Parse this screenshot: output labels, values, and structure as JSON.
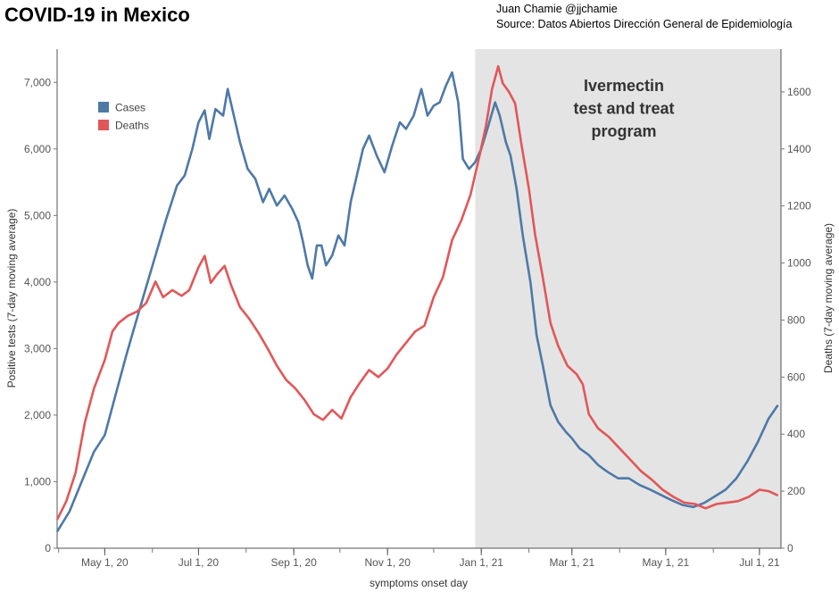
{
  "header": {
    "title": "COVID-19 in Mexico",
    "credit_line1": "Juan Chamie  @jjchamie",
    "credit_line2": "Source: Datos Abiertos Dirección General de Epidemiología"
  },
  "chart_data": {
    "type": "line",
    "title": "COVID-19 in Mexico",
    "xlabel": "symptoms onset day",
    "ylabel_left": "Positive tests (7-day moving average)",
    "ylabel_right": "Deaths (7-day moving average)",
    "x_tick_labels": [
      "May 1, 20",
      "Jul 1, 20",
      "Sep 1, 20",
      "Nov 1, 20",
      "Jan 1, 21",
      "Mar 1, 21",
      "May 1, 21",
      "Jul 1, 21"
    ],
    "x_tick_dates": [
      "2020-05-01",
      "2020-07-01",
      "2020-09-01",
      "2020-11-01",
      "2021-01-01",
      "2021-03-01",
      "2021-05-01",
      "2021-07-01"
    ],
    "xlim": [
      "2020-03-31",
      "2021-07-15"
    ],
    "ylim_left": [
      0,
      7500
    ],
    "ylim_right": [
      0,
      1750
    ],
    "y_left_ticks": [
      {
        "value": 0,
        "label": "0"
      },
      {
        "value": 1000,
        "label": "1,000"
      },
      {
        "value": 2000,
        "label": "2,000"
      },
      {
        "value": 3000,
        "label": "3,000"
      },
      {
        "value": 4000,
        "label": "4,000"
      },
      {
        "value": 5000,
        "label": "5,000"
      },
      {
        "value": 6000,
        "label": "6,000"
      },
      {
        "value": 7000,
        "label": "7,000"
      }
    ],
    "y_right_ticks": [
      {
        "value": 0,
        "label": "0"
      },
      {
        "value": 200,
        "label": "200"
      },
      {
        "value": 400,
        "label": "400"
      },
      {
        "value": 600,
        "label": "600"
      },
      {
        "value": 800,
        "label": "800"
      },
      {
        "value": 1000,
        "label": "1000"
      },
      {
        "value": 1200,
        "label": "1200"
      },
      {
        "value": 1400,
        "label": "1400"
      },
      {
        "value": 1600,
        "label": "1600"
      }
    ],
    "legend_position": "top-left",
    "grid": false,
    "shaded_region": {
      "start": "2020-12-28",
      "end": "2021-07-15",
      "label_lines": [
        "Ivermectin",
        "test and treat",
        "program"
      ],
      "color": "#e4e4e4"
    },
    "series": [
      {
        "name": "Cases",
        "axis": "left",
        "color": "#4e79a7",
        "points": [
          [
            "2020-03-31",
            250
          ],
          [
            "2020-04-08",
            550
          ],
          [
            "2020-04-16",
            1000
          ],
          [
            "2020-04-24",
            1450
          ],
          [
            "2020-05-01",
            1700
          ],
          [
            "2020-05-08",
            2300
          ],
          [
            "2020-05-15",
            2900
          ],
          [
            "2020-05-20",
            3300
          ],
          [
            "2020-05-27",
            3850
          ],
          [
            "2020-06-03",
            4400
          ],
          [
            "2020-06-10",
            4950
          ],
          [
            "2020-06-17",
            5450
          ],
          [
            "2020-06-22",
            5600
          ],
          [
            "2020-06-27",
            6000
          ],
          [
            "2020-07-01",
            6400
          ],
          [
            "2020-07-05",
            6580
          ],
          [
            "2020-07-08",
            6150
          ],
          [
            "2020-07-12",
            6600
          ],
          [
            "2020-07-17",
            6500
          ],
          [
            "2020-07-20",
            6900
          ],
          [
            "2020-07-24",
            6500
          ],
          [
            "2020-07-28",
            6100
          ],
          [
            "2020-08-02",
            5700
          ],
          [
            "2020-08-07",
            5550
          ],
          [
            "2020-08-12",
            5200
          ],
          [
            "2020-08-16",
            5400
          ],
          [
            "2020-08-21",
            5150
          ],
          [
            "2020-08-26",
            5300
          ],
          [
            "2020-08-31",
            5100
          ],
          [
            "2020-09-04",
            4900
          ],
          [
            "2020-09-07",
            4600
          ],
          [
            "2020-09-10",
            4250
          ],
          [
            "2020-09-13",
            4050
          ],
          [
            "2020-09-16",
            4550
          ],
          [
            "2020-09-19",
            4550
          ],
          [
            "2020-09-22",
            4250
          ],
          [
            "2020-09-26",
            4400
          ],
          [
            "2020-09-30",
            4700
          ],
          [
            "2020-10-04",
            4550
          ],
          [
            "2020-10-08",
            5200
          ],
          [
            "2020-10-12",
            5600
          ],
          [
            "2020-10-16",
            6000
          ],
          [
            "2020-10-20",
            6200
          ],
          [
            "2020-10-25",
            5900
          ],
          [
            "2020-10-30",
            5650
          ],
          [
            "2020-11-04",
            6050
          ],
          [
            "2020-11-09",
            6400
          ],
          [
            "2020-11-13",
            6300
          ],
          [
            "2020-11-18",
            6500
          ],
          [
            "2020-11-23",
            6900
          ],
          [
            "2020-11-27",
            6500
          ],
          [
            "2020-12-01",
            6650
          ],
          [
            "2020-12-05",
            6700
          ],
          [
            "2020-12-09",
            6950
          ],
          [
            "2020-12-13",
            7150
          ],
          [
            "2020-12-17",
            6700
          ],
          [
            "2020-12-20",
            5850
          ],
          [
            "2020-12-24",
            5700
          ],
          [
            "2020-12-28",
            5800
          ],
          [
            "2021-01-01",
            6000
          ],
          [
            "2021-01-05",
            6300
          ],
          [
            "2021-01-10",
            6700
          ],
          [
            "2021-01-13",
            6500
          ],
          [
            "2021-01-17",
            6100
          ],
          [
            "2021-01-20",
            5900
          ],
          [
            "2021-01-24",
            5400
          ],
          [
            "2021-01-28",
            4700
          ],
          [
            "2021-02-02",
            4000
          ],
          [
            "2021-02-06",
            3200
          ],
          [
            "2021-02-10",
            2750
          ],
          [
            "2021-02-15",
            2150
          ],
          [
            "2021-02-20",
            1900
          ],
          [
            "2021-02-25",
            1750
          ],
          [
            "2021-03-01",
            1650
          ],
          [
            "2021-03-06",
            1500
          ],
          [
            "2021-03-12",
            1400
          ],
          [
            "2021-03-18",
            1250
          ],
          [
            "2021-03-24",
            1150
          ],
          [
            "2021-03-31",
            1050
          ],
          [
            "2021-04-07",
            1050
          ],
          [
            "2021-04-14",
            950
          ],
          [
            "2021-04-21",
            880
          ],
          [
            "2021-04-28",
            800
          ],
          [
            "2021-05-05",
            720
          ],
          [
            "2021-05-12",
            650
          ],
          [
            "2021-05-19",
            620
          ],
          [
            "2021-05-26",
            680
          ],
          [
            "2021-06-02",
            780
          ],
          [
            "2021-06-09",
            880
          ],
          [
            "2021-06-16",
            1050
          ],
          [
            "2021-06-23",
            1300
          ],
          [
            "2021-06-30",
            1600
          ],
          [
            "2021-07-07",
            1950
          ],
          [
            "2021-07-13",
            2150
          ]
        ]
      },
      {
        "name": "Deaths",
        "axis": "right",
        "color": "#e15759",
        "points": [
          [
            "2020-03-31",
            100
          ],
          [
            "2020-04-06",
            165
          ],
          [
            "2020-04-12",
            265
          ],
          [
            "2020-04-18",
            440
          ],
          [
            "2020-04-24",
            560
          ],
          [
            "2020-05-01",
            660
          ],
          [
            "2020-05-06",
            760
          ],
          [
            "2020-05-10",
            790
          ],
          [
            "2020-05-16",
            815
          ],
          [
            "2020-05-22",
            830
          ],
          [
            "2020-05-28",
            860
          ],
          [
            "2020-06-03",
            935
          ],
          [
            "2020-06-08",
            880
          ],
          [
            "2020-06-14",
            905
          ],
          [
            "2020-06-20",
            885
          ],
          [
            "2020-06-25",
            905
          ],
          [
            "2020-07-01",
            985
          ],
          [
            "2020-07-05",
            1025
          ],
          [
            "2020-07-09",
            930
          ],
          [
            "2020-07-13",
            960
          ],
          [
            "2020-07-18",
            990
          ],
          [
            "2020-07-22",
            925
          ],
          [
            "2020-07-28",
            845
          ],
          [
            "2020-08-03",
            805
          ],
          [
            "2020-08-09",
            755
          ],
          [
            "2020-08-15",
            700
          ],
          [
            "2020-08-21",
            640
          ],
          [
            "2020-08-27",
            590
          ],
          [
            "2020-09-02",
            560
          ],
          [
            "2020-09-08",
            520
          ],
          [
            "2020-09-14",
            470
          ],
          [
            "2020-09-20",
            450
          ],
          [
            "2020-09-26",
            485
          ],
          [
            "2020-10-02",
            455
          ],
          [
            "2020-10-08",
            530
          ],
          [
            "2020-10-14",
            580
          ],
          [
            "2020-10-20",
            625
          ],
          [
            "2020-10-26",
            600
          ],
          [
            "2020-11-01",
            630
          ],
          [
            "2020-11-07",
            680
          ],
          [
            "2020-11-13",
            720
          ],
          [
            "2020-11-19",
            760
          ],
          [
            "2020-11-25",
            780
          ],
          [
            "2020-12-01",
            880
          ],
          [
            "2020-12-07",
            950
          ],
          [
            "2020-12-13",
            1080
          ],
          [
            "2020-12-19",
            1150
          ],
          [
            "2020-12-25",
            1240
          ],
          [
            "2020-12-31",
            1380
          ],
          [
            "2021-01-04",
            1480
          ],
          [
            "2021-01-08",
            1610
          ],
          [
            "2021-01-12",
            1690
          ],
          [
            "2021-01-15",
            1630
          ],
          [
            "2021-01-19",
            1600
          ],
          [
            "2021-01-23",
            1560
          ],
          [
            "2021-01-27",
            1420
          ],
          [
            "2021-02-01",
            1260
          ],
          [
            "2021-02-05",
            1100
          ],
          [
            "2021-02-10",
            950
          ],
          [
            "2021-02-15",
            790
          ],
          [
            "2021-02-20",
            710
          ],
          [
            "2021-02-26",
            640
          ],
          [
            "2021-03-04",
            610
          ],
          [
            "2021-03-08",
            575
          ],
          [
            "2021-03-12",
            470
          ],
          [
            "2021-03-18",
            420
          ],
          [
            "2021-03-25",
            390
          ],
          [
            "2021-04-01",
            350
          ],
          [
            "2021-04-08",
            310
          ],
          [
            "2021-04-15",
            270
          ],
          [
            "2021-04-22",
            240
          ],
          [
            "2021-04-29",
            205
          ],
          [
            "2021-05-06",
            180
          ],
          [
            "2021-05-13",
            160
          ],
          [
            "2021-05-20",
            155
          ],
          [
            "2021-05-27",
            140
          ],
          [
            "2021-06-03",
            155
          ],
          [
            "2021-06-10",
            160
          ],
          [
            "2021-06-17",
            165
          ],
          [
            "2021-06-24",
            180
          ],
          [
            "2021-07-01",
            205
          ],
          [
            "2021-07-07",
            200
          ],
          [
            "2021-07-13",
            185
          ]
        ]
      }
    ]
  }
}
